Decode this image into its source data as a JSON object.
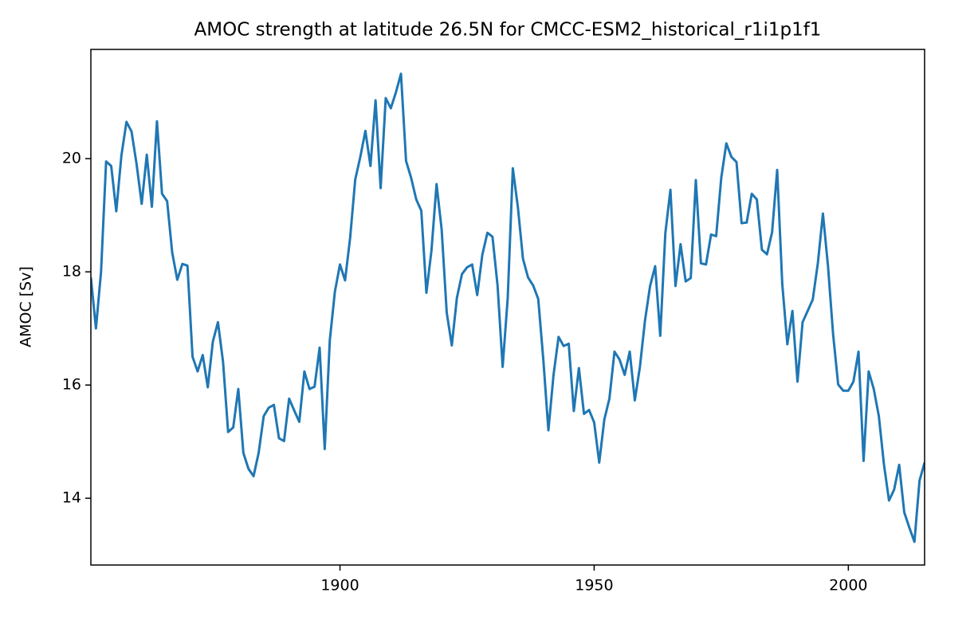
{
  "chart_data": {
    "type": "line",
    "title": "AMOC strength at latitude 26.5N for CMCC-ESM2_historical_r1i1p1f1",
    "y_label": "AMOC [Sv]",
    "color": "#1f77b4",
    "x": [
      1851,
      1852,
      1853,
      1854,
      1855,
      1856,
      1857,
      1858,
      1859,
      1860,
      1861,
      1862,
      1863,
      1864,
      1865,
      1866,
      1867,
      1868,
      1869,
      1870,
      1871,
      1872,
      1873,
      1874,
      1875,
      1876,
      1877,
      1878,
      1879,
      1880,
      1881,
      1882,
      1883,
      1884,
      1885,
      1886,
      1887,
      1888,
      1889,
      1890,
      1891,
      1892,
      1893,
      1894,
      1895,
      1896,
      1897,
      1898,
      1899,
      1900,
      1901,
      1902,
      1903,
      1904,
      1905,
      1906,
      1907,
      1908,
      1909,
      1910,
      1911,
      1912,
      1913,
      1914,
      1915,
      1916,
      1917,
      1918,
      1919,
      1920,
      1921,
      1922,
      1923,
      1924,
      1925,
      1926,
      1927,
      1928,
      1929,
      1930,
      1931,
      1932,
      1933,
      1934,
      1935,
      1936,
      1937,
      1938,
      1939,
      1940,
      1941,
      1942,
      1943,
      1944,
      1945,
      1946,
      1947,
      1948,
      1949,
      1950,
      1951,
      1952,
      1953,
      1954,
      1955,
      1956,
      1957,
      1958,
      1959,
      1960,
      1961,
      1962,
      1963,
      1964,
      1965,
      1966,
      1967,
      1968,
      1969,
      1970,
      1971,
      1972,
      1973,
      1974,
      1975,
      1976,
      1977,
      1978,
      1979,
      1980,
      1981,
      1982,
      1983,
      1984,
      1985,
      1986,
      1987,
      1988,
      1989,
      1990,
      1991,
      1992,
      1993,
      1994,
      1995,
      1996,
      1997,
      1998,
      1999,
      2000,
      2001,
      2002,
      2003,
      2004,
      2005,
      2006,
      2007,
      2008,
      2009,
      2010,
      2011,
      2012,
      2013,
      2014,
      2015
    ],
    "values": [
      17.9,
      17.0,
      18.0,
      19.95,
      19.87,
      19.07,
      20.05,
      20.65,
      20.48,
      19.9,
      19.2,
      20.07,
      19.15,
      20.66,
      19.38,
      19.25,
      18.34,
      17.86,
      18.14,
      18.11,
      16.5,
      16.24,
      16.53,
      15.96,
      16.77,
      17.11,
      16.41,
      15.17,
      15.25,
      15.93,
      14.8,
      14.52,
      14.39,
      14.8,
      15.45,
      15.6,
      15.65,
      15.06,
      15.01,
      15.76,
      15.55,
      15.35,
      16.24,
      15.93,
      15.97,
      16.66,
      14.87,
      16.79,
      17.65,
      18.13,
      17.85,
      18.6,
      19.63,
      20.03,
      20.49,
      19.87,
      21.03,
      19.48,
      21.07,
      20.89,
      21.17,
      21.5,
      19.96,
      19.66,
      19.28,
      19.08,
      17.63,
      18.38,
      19.55,
      18.75,
      17.28,
      16.7,
      17.54,
      17.96,
      18.08,
      18.13,
      17.59,
      18.3,
      18.69,
      18.62,
      17.76,
      16.32,
      17.54,
      19.83,
      19.14,
      18.23,
      17.9,
      17.76,
      17.52,
      16.45,
      15.2,
      16.17,
      16.85,
      16.69,
      16.73,
      15.54,
      16.3,
      15.49,
      15.56,
      15.34,
      14.63,
      15.39,
      15.76,
      16.59,
      16.45,
      16.18,
      16.59,
      15.73,
      16.32,
      17.14,
      17.75,
      18.1,
      16.87,
      18.68,
      19.45,
      17.75,
      18.49,
      17.83,
      17.89,
      19.62,
      18.15,
      18.13,
      18.66,
      18.63,
      19.66,
      20.27,
      20.03,
      19.94,
      18.86,
      18.87,
      19.38,
      19.28,
      18.39,
      18.31,
      18.7,
      19.8,
      17.79,
      16.72,
      17.31,
      16.06,
      17.11,
      17.31,
      17.51,
      18.15,
      19.03,
      18.1,
      16.9,
      16.01,
      15.9,
      15.9,
      16.06,
      16.59,
      14.66,
      16.24,
      15.93,
      15.45,
      14.6,
      13.96,
      14.15,
      14.59,
      13.75,
      13.48,
      13.23,
      14.31,
      14.63
    ],
    "xlim": [
      1851,
      2015
    ],
    "xticks": [
      1900,
      1950,
      2000
    ],
    "ylim": [
      12.82,
      21.93
    ],
    "yticks": [
      14,
      16,
      18,
      20
    ]
  }
}
